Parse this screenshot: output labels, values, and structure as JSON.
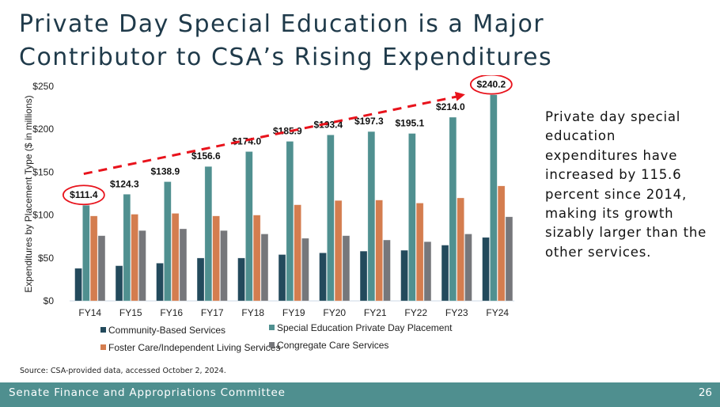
{
  "slide": {
    "title_line1": "Private Day Special Education is a Major",
    "title_line2": "Contributor to CSA’s Rising Expenditures",
    "side_text": "Private day special education expenditures have increased by 115.6 percent since 2014, making its growth sizably larger than the other services.",
    "source": "Source: CSA-provided data, accessed October 2, 2024.",
    "footer_committee": "Senate Finance and Appropriations Committee",
    "page_number": "26"
  },
  "colors": {
    "community": "#234a5c",
    "special_ed": "#509090",
    "foster": "#d47d4f",
    "congregate": "#76777b",
    "highlight": "#e8131c",
    "footer": "#4f8f8f"
  },
  "chart_data": {
    "type": "bar",
    "title": "",
    "xlabel": "",
    "ylabel": "Expenditures by Placement Type ($ in millions)",
    "ylim": [
      0,
      250
    ],
    "yticks": [
      0,
      50,
      100,
      150,
      200,
      250
    ],
    "ytick_labels": [
      "$0",
      "$50",
      "$100",
      "$150",
      "$200",
      "$250"
    ],
    "grid": false,
    "legend_position": "bottom",
    "categories": [
      "FY14",
      "FY15",
      "FY16",
      "FY17",
      "FY18",
      "FY19",
      "FY20",
      "FY21",
      "FY22",
      "FY23",
      "FY24"
    ],
    "series": [
      {
        "name": "Community-Based Services",
        "key": "community",
        "values": [
          38,
          41,
          44,
          50,
          50,
          54,
          56,
          58,
          59,
          65,
          74
        ]
      },
      {
        "name": "Special Education Private Day Placement",
        "key": "special_ed",
        "values": [
          111.4,
          124.3,
          138.9,
          156.6,
          174.0,
          185.9,
          193.4,
          197.3,
          195.1,
          214.0,
          240.2
        ]
      },
      {
        "name": "Foster Care/Independent Living Services",
        "key": "foster",
        "values": [
          99,
          101,
          102,
          99,
          100,
          112,
          117,
          117.5,
          114,
          120,
          134
        ]
      },
      {
        "name": "Congregate Care Services",
        "key": "congregate",
        "values": [
          76,
          82,
          84,
          82,
          78,
          73,
          76,
          71,
          69,
          78,
          98
        ]
      }
    ],
    "data_labels": [
      "$111.4",
      "$124.3",
      "$138.9",
      "$156.6",
      "$174.0",
      "$185.9",
      "$193.4",
      "$197.3",
      "$195.1",
      "$214.0",
      "$240.2"
    ],
    "data_label_series": "Special Education Private Day Placement",
    "highlighted_labels": [
      "FY14",
      "FY24"
    ],
    "annotation": "dashed red trend arrow from FY14 to FY24"
  }
}
